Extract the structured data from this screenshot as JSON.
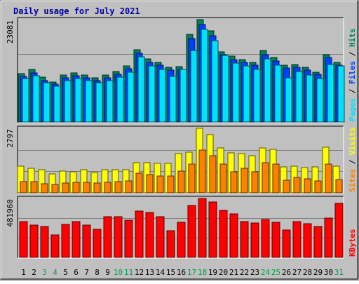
{
  "title": "Daily usage for July 2021",
  "colors": {
    "frame_bg": "#C0C0C0",
    "panel_bg": "#C0C0C0",
    "title": "#0000A0",
    "hits": "#00805C",
    "files": "#0040FF",
    "pages": "#00E0FF",
    "visits": "#FFFF00",
    "sites": "#FF8000",
    "kbytes": "#FF0000",
    "weekend_day": "#00A050",
    "weekday": "#000000"
  },
  "chart_data": [
    {
      "type": "bar",
      "panel": "top",
      "max_label": "23081",
      "legend": [
        {
          "key": "pages",
          "label": "Pages"
        },
        {
          "key": "files",
          "label": "Files"
        },
        {
          "key": "hits",
          "label": "Hits"
        }
      ],
      "categories": [
        "1",
        "2",
        "3",
        "4",
        "5",
        "6",
        "7",
        "8",
        "9",
        "10",
        "11",
        "12",
        "13",
        "14",
        "15",
        "16",
        "17",
        "18",
        "19",
        "20",
        "21",
        "22",
        "23",
        "24",
        "25",
        "26",
        "27",
        "28",
        "29",
        "30",
        "31"
      ],
      "series": [
        {
          "name": "Hits",
          "key": "hits",
          "values": [
            10950,
            11900,
            10050,
            9050,
            10600,
            11100,
            10600,
            9900,
            10600,
            11350,
            12700,
            16300,
            14200,
            13500,
            12300,
            12500,
            19700,
            23081,
            20500,
            15800,
            14800,
            14100,
            13450,
            16050,
            14500,
            12800,
            13000,
            12400,
            11300,
            15250,
            13500
          ]
        },
        {
          "name": "Files",
          "key": "files",
          "values": [
            10300,
            11100,
            9350,
            8500,
            9950,
            10400,
            9950,
            9300,
            9950,
            10700,
            12000,
            15500,
            13500,
            12800,
            11700,
            11900,
            18800,
            22000,
            19500,
            15100,
            14100,
            13400,
            12800,
            15200,
            13800,
            12200,
            12300,
            11700,
            10700,
            14500,
            12800
          ]
        },
        {
          "name": "Pages",
          "key": "pages",
          "values": [
            9800,
            10500,
            8850,
            8000,
            9400,
            9800,
            9400,
            8800,
            9400,
            10100,
            11200,
            14700,
            12700,
            11800,
            10200,
            11800,
            16200,
            20800,
            18300,
            15000,
            13300,
            12700,
            11800,
            14300,
            12800,
            10000,
            11400,
            10600,
            9800,
            12900,
            12600
          ]
        }
      ]
    },
    {
      "type": "bar",
      "panel": "middle",
      "max_label": "2797",
      "legend": [
        {
          "key": "sites",
          "label": "Sites"
        },
        {
          "key": "visits",
          "label": "Visits"
        }
      ],
      "categories": [
        "1",
        "2",
        "3",
        "4",
        "5",
        "6",
        "7",
        "8",
        "9",
        "10",
        "11",
        "12",
        "13",
        "14",
        "15",
        "16",
        "17",
        "18",
        "19",
        "20",
        "21",
        "22",
        "23",
        "24",
        "25",
        "26",
        "27",
        "28",
        "29",
        "30",
        "31"
      ],
      "series": [
        {
          "name": "Visits",
          "key": "visits",
          "values": [
            1150,
            1050,
            1010,
            810,
            930,
            920,
            1000,
            890,
            1000,
            1010,
            1010,
            1320,
            1300,
            1290,
            1290,
            1690,
            1760,
            2797,
            2530,
            1950,
            1720,
            1700,
            1600,
            1940,
            1880,
            1130,
            1160,
            1090,
            1110,
            1990,
            1150
          ]
        },
        {
          "name": "Sites",
          "key": "sites",
          "values": [
            480,
            500,
            410,
            360,
            420,
            450,
            470,
            420,
            470,
            480,
            510,
            850,
            790,
            730,
            740,
            950,
            1260,
            1840,
            1600,
            1260,
            900,
            1050,
            920,
            1310,
            1250,
            560,
            660,
            610,
            530,
            1250,
            570
          ]
        }
      ]
    },
    {
      "type": "bar",
      "panel": "bottom",
      "max_label": "481960",
      "legend": [
        {
          "key": "kbytes",
          "label": "KBytes"
        }
      ],
      "categories": [
        "1",
        "2",
        "3",
        "4",
        "5",
        "6",
        "7",
        "8",
        "9",
        "10",
        "11",
        "12",
        "13",
        "14",
        "15",
        "16",
        "17",
        "18",
        "19",
        "20",
        "21",
        "22",
        "23",
        "24",
        "25",
        "26",
        "27",
        "28",
        "29",
        "30",
        "31"
      ],
      "series": [
        {
          "name": "KBytes",
          "key": "kbytes",
          "values": [
            290000,
            265000,
            255000,
            185000,
            268000,
            290000,
            262000,
            228000,
            330000,
            335000,
            303000,
            379000,
            367000,
            335000,
            220000,
            288000,
            426000,
            481960,
            451000,
            385000,
            355000,
            290000,
            282000,
            310000,
            285000,
            225000,
            290000,
            274000,
            250000,
            320000,
            442000
          ]
        }
      ]
    }
  ],
  "x_labels": [
    {
      "text": "1",
      "weekend": false
    },
    {
      "text": "2",
      "weekend": false
    },
    {
      "text": "3",
      "weekend": true
    },
    {
      "text": "4",
      "weekend": true
    },
    {
      "text": "5",
      "weekend": false
    },
    {
      "text": "6",
      "weekend": false
    },
    {
      "text": "7",
      "weekend": false
    },
    {
      "text": "8",
      "weekend": false
    },
    {
      "text": "9",
      "weekend": false
    },
    {
      "text": "10",
      "weekend": true
    },
    {
      "text": "11",
      "weekend": true
    },
    {
      "text": "12",
      "weekend": false
    },
    {
      "text": "13",
      "weekend": false
    },
    {
      "text": "14",
      "weekend": false
    },
    {
      "text": "15",
      "weekend": false
    },
    {
      "text": "16",
      "weekend": false
    },
    {
      "text": "17",
      "weekend": true
    },
    {
      "text": "18",
      "weekend": true
    },
    {
      "text": "19",
      "weekend": false
    },
    {
      "text": "20",
      "weekend": false
    },
    {
      "text": "21",
      "weekend": false
    },
    {
      "text": "22",
      "weekend": false
    },
    {
      "text": "23",
      "weekend": false
    },
    {
      "text": "24",
      "weekend": true
    },
    {
      "text": "25",
      "weekend": true
    },
    {
      "text": "26",
      "weekend": false
    },
    {
      "text": "27",
      "weekend": false
    },
    {
      "text": "28",
      "weekend": false
    },
    {
      "text": "29",
      "weekend": false
    },
    {
      "text": "30",
      "weekend": false
    },
    {
      "text": "31",
      "weekend": true
    }
  ]
}
